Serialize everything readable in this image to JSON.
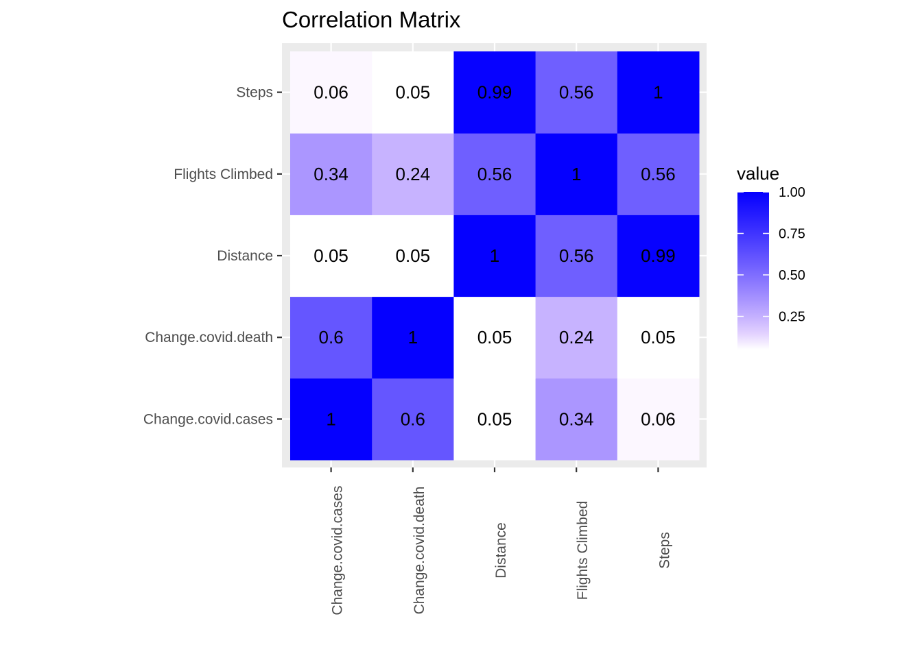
{
  "chart_data": {
    "type": "heatmap",
    "title": "Correlation Matrix",
    "xlabel": "",
    "ylabel": "",
    "x_categories": [
      "Change.covid.cases",
      "Change.covid.death",
      "Distance",
      "Flights Climbed",
      "Steps"
    ],
    "y_categories": [
      "Change.covid.cases",
      "Change.covid.death",
      "Distance",
      "Flights Climbed",
      "Steps"
    ],
    "cells": [
      {
        "x": "Change.covid.cases",
        "y": "Change.covid.cases",
        "value": 1,
        "label": "1"
      },
      {
        "x": "Change.covid.death",
        "y": "Change.covid.cases",
        "value": 0.6,
        "label": "0.6"
      },
      {
        "x": "Distance",
        "y": "Change.covid.cases",
        "value": 0.05,
        "label": "0.05"
      },
      {
        "x": "Flights Climbed",
        "y": "Change.covid.cases",
        "value": 0.34,
        "label": "0.34"
      },
      {
        "x": "Steps",
        "y": "Change.covid.cases",
        "value": 0.06,
        "label": "0.06"
      },
      {
        "x": "Change.covid.cases",
        "y": "Change.covid.death",
        "value": 0.6,
        "label": "0.6"
      },
      {
        "x": "Change.covid.death",
        "y": "Change.covid.death",
        "value": 1,
        "label": "1"
      },
      {
        "x": "Distance",
        "y": "Change.covid.death",
        "value": 0.05,
        "label": "0.05"
      },
      {
        "x": "Flights Climbed",
        "y": "Change.covid.death",
        "value": 0.24,
        "label": "0.24"
      },
      {
        "x": "Steps",
        "y": "Change.covid.death",
        "value": 0.05,
        "label": "0.05"
      },
      {
        "x": "Change.covid.cases",
        "y": "Distance",
        "value": 0.05,
        "label": "0.05"
      },
      {
        "x": "Change.covid.death",
        "y": "Distance",
        "value": 0.05,
        "label": "0.05"
      },
      {
        "x": "Distance",
        "y": "Distance",
        "value": 1,
        "label": "1"
      },
      {
        "x": "Flights Climbed",
        "y": "Distance",
        "value": 0.56,
        "label": "0.56"
      },
      {
        "x": "Steps",
        "y": "Distance",
        "value": 0.99,
        "label": "0.99"
      },
      {
        "x": "Change.covid.cases",
        "y": "Flights Climbed",
        "value": 0.34,
        "label": "0.34"
      },
      {
        "x": "Change.covid.death",
        "y": "Flights Climbed",
        "value": 0.24,
        "label": "0.24"
      },
      {
        "x": "Distance",
        "y": "Flights Climbed",
        "value": 0.56,
        "label": "0.56"
      },
      {
        "x": "Flights Climbed",
        "y": "Flights Climbed",
        "value": 1,
        "label": "1"
      },
      {
        "x": "Steps",
        "y": "Flights Climbed",
        "value": 0.56,
        "label": "0.56"
      },
      {
        "x": "Change.covid.cases",
        "y": "Steps",
        "value": 0.06,
        "label": "0.06"
      },
      {
        "x": "Change.covid.death",
        "y": "Steps",
        "value": 0.05,
        "label": "0.05"
      },
      {
        "x": "Distance",
        "y": "Steps",
        "value": 0.99,
        "label": "0.99"
      },
      {
        "x": "Flights Climbed",
        "y": "Steps",
        "value": 0.56,
        "label": "0.56"
      },
      {
        "x": "Steps",
        "y": "Steps",
        "value": 1,
        "label": "1"
      }
    ],
    "legend": {
      "title": "value",
      "ticks": [
        1.0,
        0.75,
        0.5,
        0.25
      ],
      "tick_labels": [
        "1.00",
        "0.75",
        "0.50",
        "0.25"
      ],
      "range": [
        0.05,
        1.0
      ],
      "placement": "right"
    },
    "colors": {
      "low": "#ffffff",
      "high": "#0000ff",
      "panel_background": "#ebebeb",
      "grid": "#ffffff"
    },
    "grid": true
  }
}
